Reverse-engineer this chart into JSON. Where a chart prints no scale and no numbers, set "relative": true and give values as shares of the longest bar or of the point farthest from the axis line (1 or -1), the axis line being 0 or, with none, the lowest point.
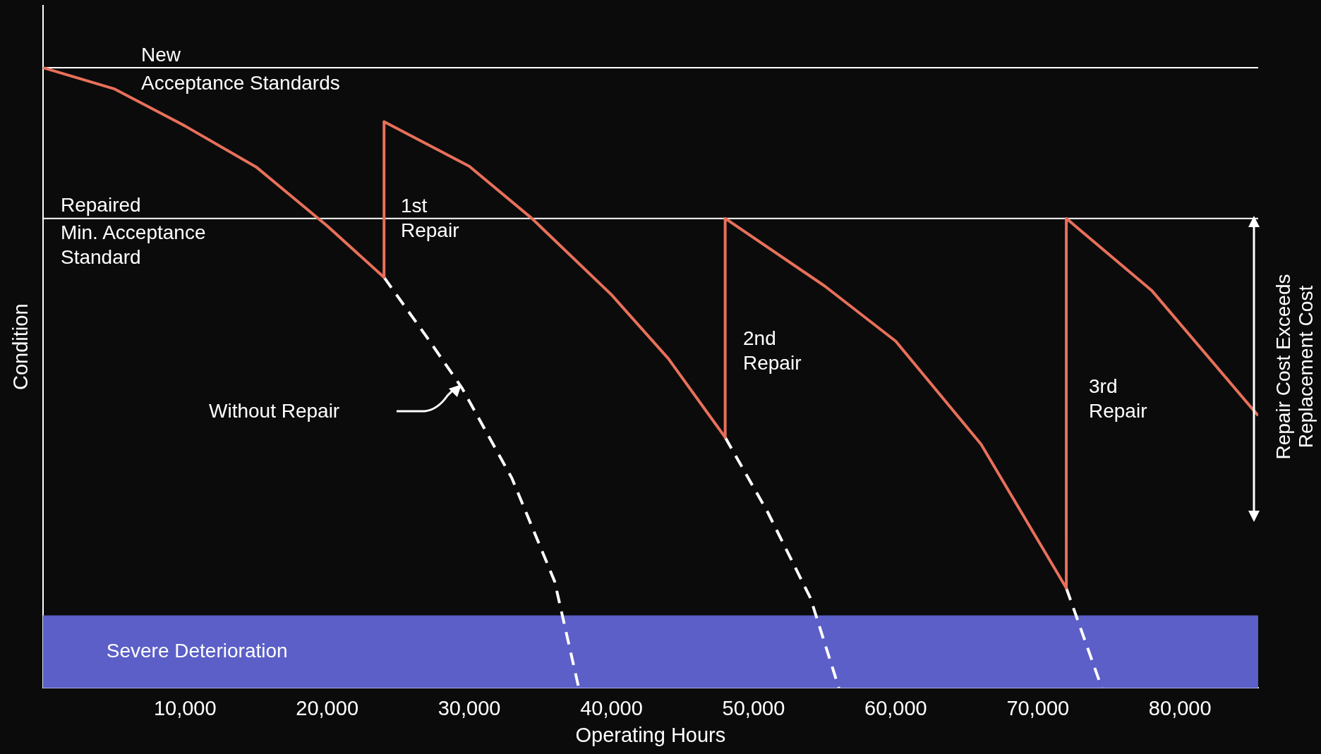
{
  "chart_data": {
    "type": "line",
    "relative": true,
    "xlabel": "Operating Hours",
    "ylabel": "Condition",
    "xlim": [
      0,
      85500
    ],
    "xticks": [
      {
        "value": 10000,
        "label": "10,000"
      },
      {
        "value": 20000,
        "label": "20,000"
      },
      {
        "value": 30000,
        "label": "30,000"
      },
      {
        "value": 40000,
        "label": "40,000"
      },
      {
        "value": 50000,
        "label": "50,000"
      },
      {
        "value": 60000,
        "label": "60,000"
      },
      {
        "value": 70000,
        "label": "70,000"
      },
      {
        "value": 80000,
        "label": "80,000"
      }
    ],
    "series": [
      {
        "color": "#e8705a",
        "line_style": "solid",
        "x": [
          0,
          5000,
          10000,
          15000,
          20000,
          24000,
          24000,
          30000,
          34400,
          40000,
          44000,
          48000,
          48000,
          55000,
          60000,
          66000,
          72000,
          72000,
          78000,
          85500
        ],
        "values": [
          1,
          0.966,
          0.906,
          0.84,
          0.745,
          0.662,
          0.913,
          0.841,
          0.757,
          0.634,
          0.531,
          0.404,
          0.757,
          0.648,
          0.559,
          0.393,
          0.161,
          0.757,
          0.641,
          0.439
        ]
      },
      {
        "color": "#ffffff",
        "line_style": "dashed",
        "x": [
          24000,
          27000,
          29500,
          33000,
          36000,
          37700
        ],
        "values": [
          0.662,
          0.566,
          0.483,
          0.338,
          0.172,
          0
        ]
      },
      {
        "color": "#ffffff",
        "line_style": "dashed",
        "x": [
          48000,
          51000,
          54000,
          56000
        ],
        "values": [
          0.404,
          0.283,
          0.145,
          0
        ]
      },
      {
        "color": "#ffffff",
        "line_style": "dashed",
        "x": [
          72000,
          74500
        ],
        "values": [
          0.161,
          0
        ]
      }
    ],
    "ref_lines": [
      {
        "axis": "y",
        "value": 1,
        "label": "New",
        "color": "#ffffff"
      },
      {
        "axis": "y",
        "value": 0.757,
        "label": "Repaired",
        "color": "#ffffff"
      }
    ],
    "bands": [
      {
        "axis": "y",
        "from": 0,
        "to": 0.117,
        "label": "Severe Deterioration",
        "color": "#5b5fc7"
      }
    ],
    "annotations": [
      "Acceptance Standards",
      "Min. Acceptance\nStandard",
      "1st\nRepair",
      "2nd\nRepair",
      "3rd\nRepair",
      "Without Repair",
      "Repair Cost Exceeds Replacement Cost"
    ],
    "grid": false,
    "legend": false
  }
}
